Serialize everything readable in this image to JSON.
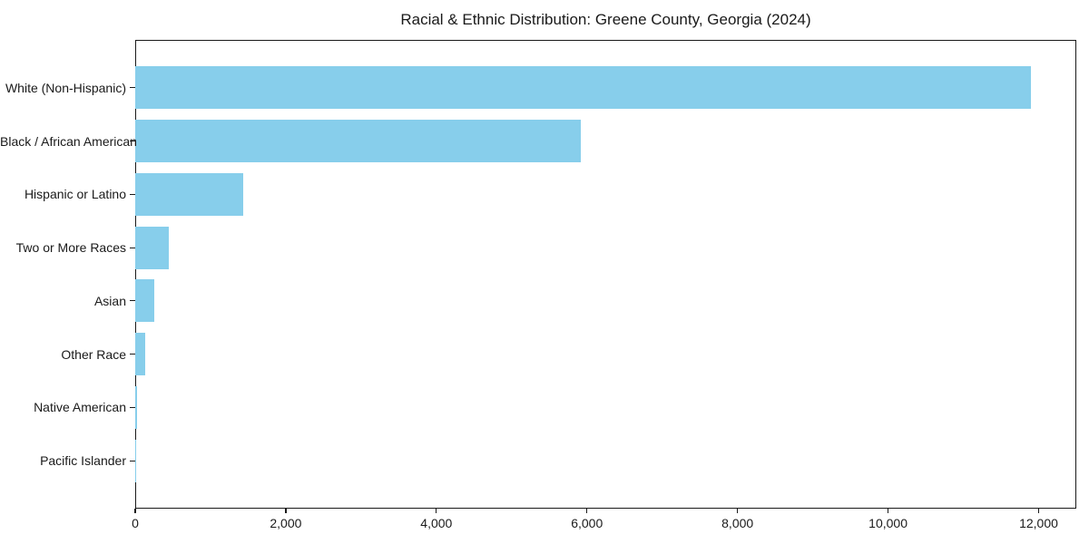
{
  "chart_data": {
    "type": "bar",
    "orientation": "horizontal",
    "title": "Racial & Ethnic Distribution: Greene County, Georgia (2024)",
    "categories": [
      "White (Non-Hispanic)",
      "Black / African American",
      "Hispanic or Latino",
      "Two or More Races",
      "Asian",
      "Other Race",
      "Native American",
      "Pacific Islander"
    ],
    "values": [
      11900,
      5920,
      1440,
      440,
      250,
      130,
      20,
      10
    ],
    "xlabel": "",
    "ylabel": "",
    "xlim": [
      0,
      12500
    ],
    "xticks": [
      0,
      2000,
      4000,
      6000,
      8000,
      10000,
      12000
    ],
    "xtick_labels": [
      "0",
      "2,000",
      "4,000",
      "6,000",
      "8,000",
      "10,000",
      "12,000"
    ],
    "grid": false,
    "legend": null,
    "colors": {
      "bar": "#87CEEB",
      "axis": "#1a1a1a",
      "text": "#1a1a1a",
      "background": "#ffffff"
    }
  }
}
